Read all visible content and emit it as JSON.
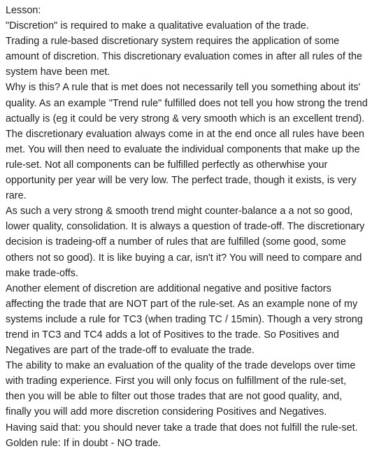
{
  "post": {
    "heading": "Lesson:",
    "paragraphs": [
      "\"Discretion\" is required to make a qualitative evaluation of the trade.",
      "Trading a rule-based discretionary system requires the application of some amount of discretion. This discretionary evaluation comes in after all rules of the system have been met.",
      "Why is this? A rule that is met does not necessarily tell you something about its' quality. As an example \"Trend rule\" fulfilled does not tell you how strong the trend actually is (eg it could be very strong & very smooth which is an excellent trend).",
      "The discretionary evaluation always come in at the end once all rules have been met. You will then need to evaluate the individual components that make up the rule-set. Not all components can be fulfilled perfectly as otherwhise your opportunity per year will be very low. The perfect trade, though it exists, is very rare.",
      "As such a very strong & smooth trend might counter-balance a a not so good, lower quality, consolidation. It is always a question of trade-off. The discretionary decision is tradeing-off a number of rules that are fulfilled (some good, some others not so good). It is like buying a car, isn't it? You will need to compare and make trade-offs.",
      "Another element of discretion are additional negative and positive factors affecting the trade that are NOT part of the rule-set. As an example none of my systems include a rule for TC3 (when trading TC / 15min). Though a very strong trend in TC3 and TC4 adds a lot of Positives to the trade. So Positives and Negatives are part of the trade-off to evaluate the trade.",
      "The ability to make an evaluation of the quality of the trade develops over time with trading experience. First you will only focus on fulfillment of the rule-set, then you will be able to filter out those trades that are not good quality, and, finally you will add more discretion considering Positives and Negatives.",
      "Having said that: you should never take a trade that does not fulfill the rule-set. Golden rule: If in doubt - NO trade."
    ]
  }
}
